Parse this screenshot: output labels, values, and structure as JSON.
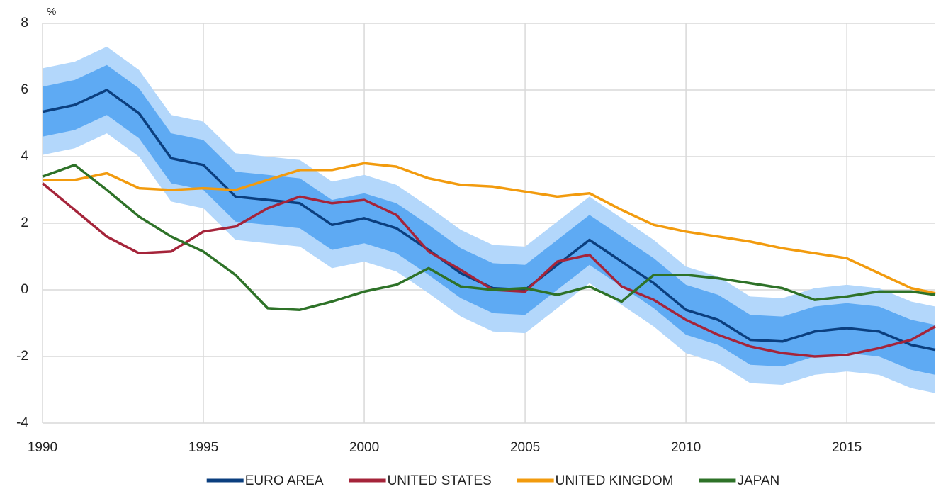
{
  "chart_data": {
    "type": "line",
    "y_label": "%",
    "x": [
      1990,
      1991,
      1992,
      1993,
      1994,
      1995,
      1996,
      1997,
      1998,
      1999,
      2000,
      2001,
      2002,
      2003,
      2004,
      2005,
      2006,
      2007,
      2008,
      2009,
      2010,
      2011,
      2012,
      2013,
      2014,
      2015,
      2016,
      2017,
      2017.75
    ],
    "xlim": [
      1990,
      2017.75
    ],
    "xticks": [
      1990,
      1995,
      2000,
      2005,
      2010,
      2015
    ],
    "ylim": [
      -4,
      8
    ],
    "yticks": [
      -4,
      -2,
      0,
      2,
      4,
      6,
      8
    ],
    "grid": true,
    "bands": [
      {
        "color": "#b3d7fb",
        "lower": [
          4.05,
          4.25,
          4.7,
          4.0,
          2.65,
          2.45,
          1.5,
          1.4,
          1.3,
          0.65,
          0.85,
          0.55,
          -0.1,
          -0.8,
          -1.25,
          -1.3,
          -0.55,
          0.2,
          -0.45,
          -1.1,
          -1.9,
          -2.2,
          -2.8,
          -2.85,
          -2.55,
          -2.45,
          -2.55,
          -2.95,
          -3.1
        ],
        "upper": [
          6.65,
          6.85,
          7.3,
          6.6,
          5.25,
          5.05,
          4.1,
          4.0,
          3.9,
          3.25,
          3.45,
          3.15,
          2.5,
          1.8,
          1.35,
          1.3,
          2.05,
          2.8,
          2.15,
          1.5,
          0.7,
          0.4,
          -0.2,
          -0.25,
          0.05,
          0.15,
          0.05,
          -0.35,
          -0.5
        ]
      },
      {
        "color": "#5eaaf3",
        "lower": [
          4.6,
          4.8,
          5.25,
          4.55,
          3.2,
          3.0,
          2.05,
          1.95,
          1.85,
          1.2,
          1.4,
          1.1,
          0.45,
          -0.25,
          -0.7,
          -0.75,
          0.0,
          0.75,
          0.1,
          -0.55,
          -1.35,
          -1.65,
          -2.25,
          -2.3,
          -2.0,
          -1.9,
          -2.0,
          -2.4,
          -2.55
        ],
        "upper": [
          6.1,
          6.3,
          6.75,
          6.05,
          4.7,
          4.5,
          3.55,
          3.45,
          3.35,
          2.7,
          2.9,
          2.6,
          1.95,
          1.25,
          0.8,
          0.75,
          1.5,
          2.25,
          1.6,
          0.95,
          0.15,
          -0.15,
          -0.75,
          -0.8,
          -0.5,
          -0.4,
          -0.5,
          -0.9,
          -1.05
        ]
      }
    ],
    "series": [
      {
        "name": "EURO AREA",
        "color": "#0b3f7f",
        "values": [
          5.35,
          5.55,
          6.0,
          5.3,
          3.95,
          3.75,
          2.8,
          2.7,
          2.6,
          1.95,
          2.15,
          1.85,
          1.2,
          0.5,
          0.05,
          0.0,
          0.75,
          1.5,
          0.85,
          0.2,
          -0.6,
          -0.9,
          -1.5,
          -1.55,
          -1.25,
          -1.15,
          -1.25,
          -1.65,
          -1.8
        ]
      },
      {
        "name": "UNITED STATES",
        "color": "#a5243a",
        "values": [
          3.2,
          2.4,
          1.6,
          1.1,
          1.15,
          1.75,
          1.9,
          2.45,
          2.8,
          2.6,
          2.7,
          2.25,
          1.15,
          0.6,
          0.0,
          -0.05,
          0.85,
          1.05,
          0.1,
          -0.3,
          -0.9,
          -1.35,
          -1.7,
          -1.9,
          -2.0,
          -1.95,
          -1.75,
          -1.5,
          -1.1
        ]
      },
      {
        "name": "UNITED KINGDOM",
        "color": "#f29b0e",
        "values": [
          3.3,
          3.3,
          3.5,
          3.05,
          3.0,
          3.05,
          3.0,
          3.3,
          3.6,
          3.6,
          3.8,
          3.7,
          3.35,
          3.15,
          3.1,
          2.95,
          2.8,
          2.9,
          2.4,
          1.95,
          1.75,
          1.6,
          1.45,
          1.25,
          1.1,
          0.95,
          0.5,
          0.05,
          -0.1
        ]
      },
      {
        "name": "JAPAN",
        "color": "#2e7228",
        "values": [
          3.4,
          3.75,
          3.0,
          2.2,
          1.6,
          1.15,
          0.45,
          -0.55,
          -0.6,
          -0.35,
          -0.05,
          0.15,
          0.65,
          0.1,
          0.0,
          0.05,
          -0.15,
          0.1,
          -0.35,
          0.45,
          0.45,
          0.35,
          0.2,
          0.05,
          -0.3,
          -0.2,
          -0.05,
          -0.05,
          -0.15
        ]
      }
    ]
  }
}
